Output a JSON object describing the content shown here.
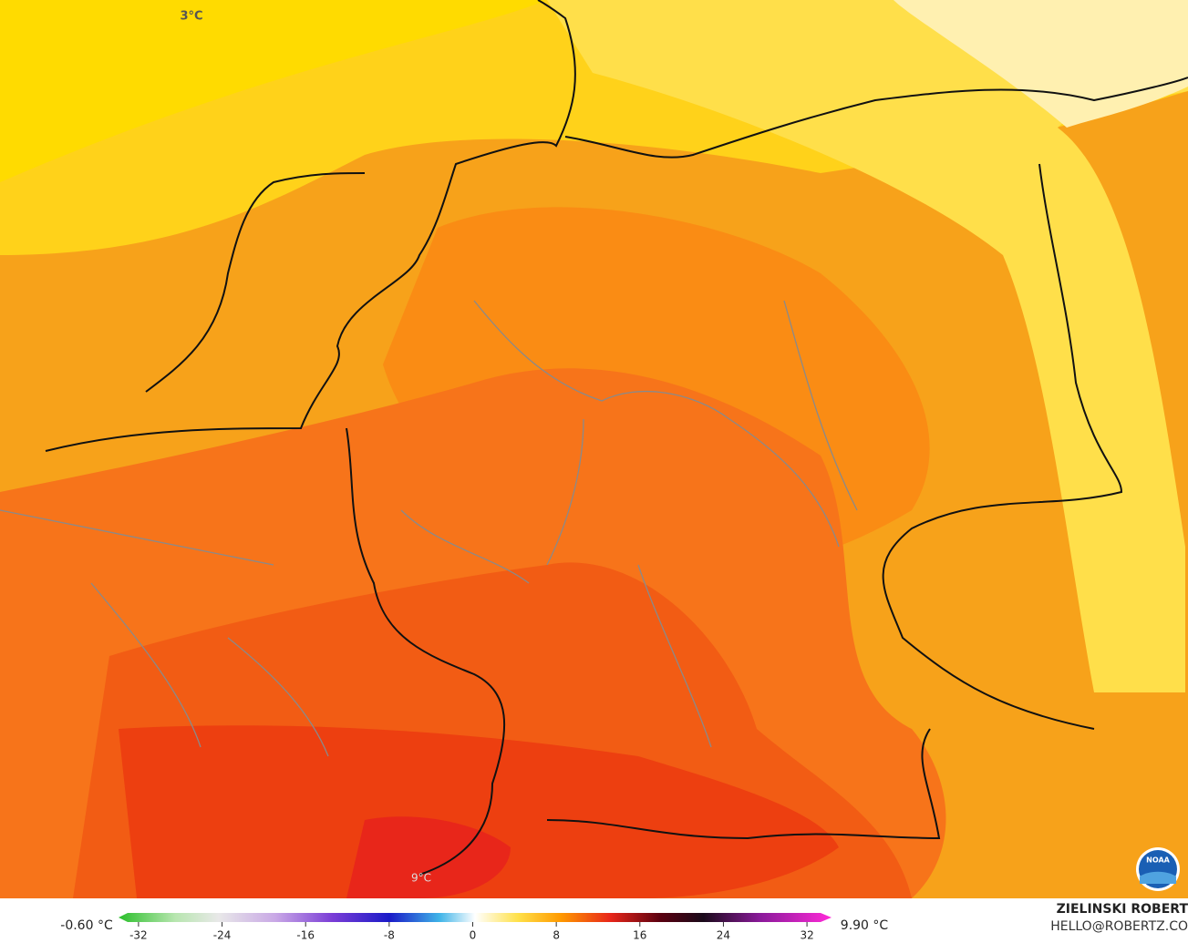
{
  "map": {
    "labels": [
      "3°C",
      "9°C"
    ]
  },
  "colorbar": {
    "min_label": "-0.60 °C",
    "max_label": "9.90 °C",
    "lim": [
      -34,
      34
    ],
    "ticks": [
      -32,
      -24,
      -16,
      -8,
      0,
      8,
      16,
      24,
      32
    ]
  },
  "credit": {
    "name": "ZIELINSKI ROBERT",
    "email": "HELLO@ROBERTZ.CO",
    "logo": "NOAA"
  }
}
